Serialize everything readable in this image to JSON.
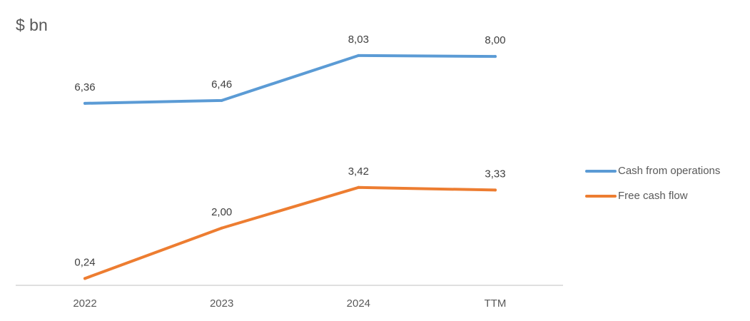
{
  "chart_data": {
    "type": "line",
    "title": "$ bn",
    "categories": [
      "2022",
      "2023",
      "2024",
      "TTM"
    ],
    "series": [
      {
        "name": "Cash from operations",
        "values": [
          6.36,
          6.46,
          8.03,
          8.0
        ],
        "labels": [
          "6,36",
          "6,46",
          "8,03",
          "8,00"
        ],
        "color": "#5B9BD5"
      },
      {
        "name": "Free cash flow",
        "values": [
          0.24,
          2.0,
          3.42,
          3.33
        ],
        "labels": [
          "0,24",
          "2,00",
          "3,42",
          "3,33"
        ],
        "color": "#ED7D31"
      }
    ],
    "ylim": [
      0,
      8.6
    ],
    "grid": false,
    "legend_position": "right",
    "axis_color": "#BFBFBF"
  }
}
